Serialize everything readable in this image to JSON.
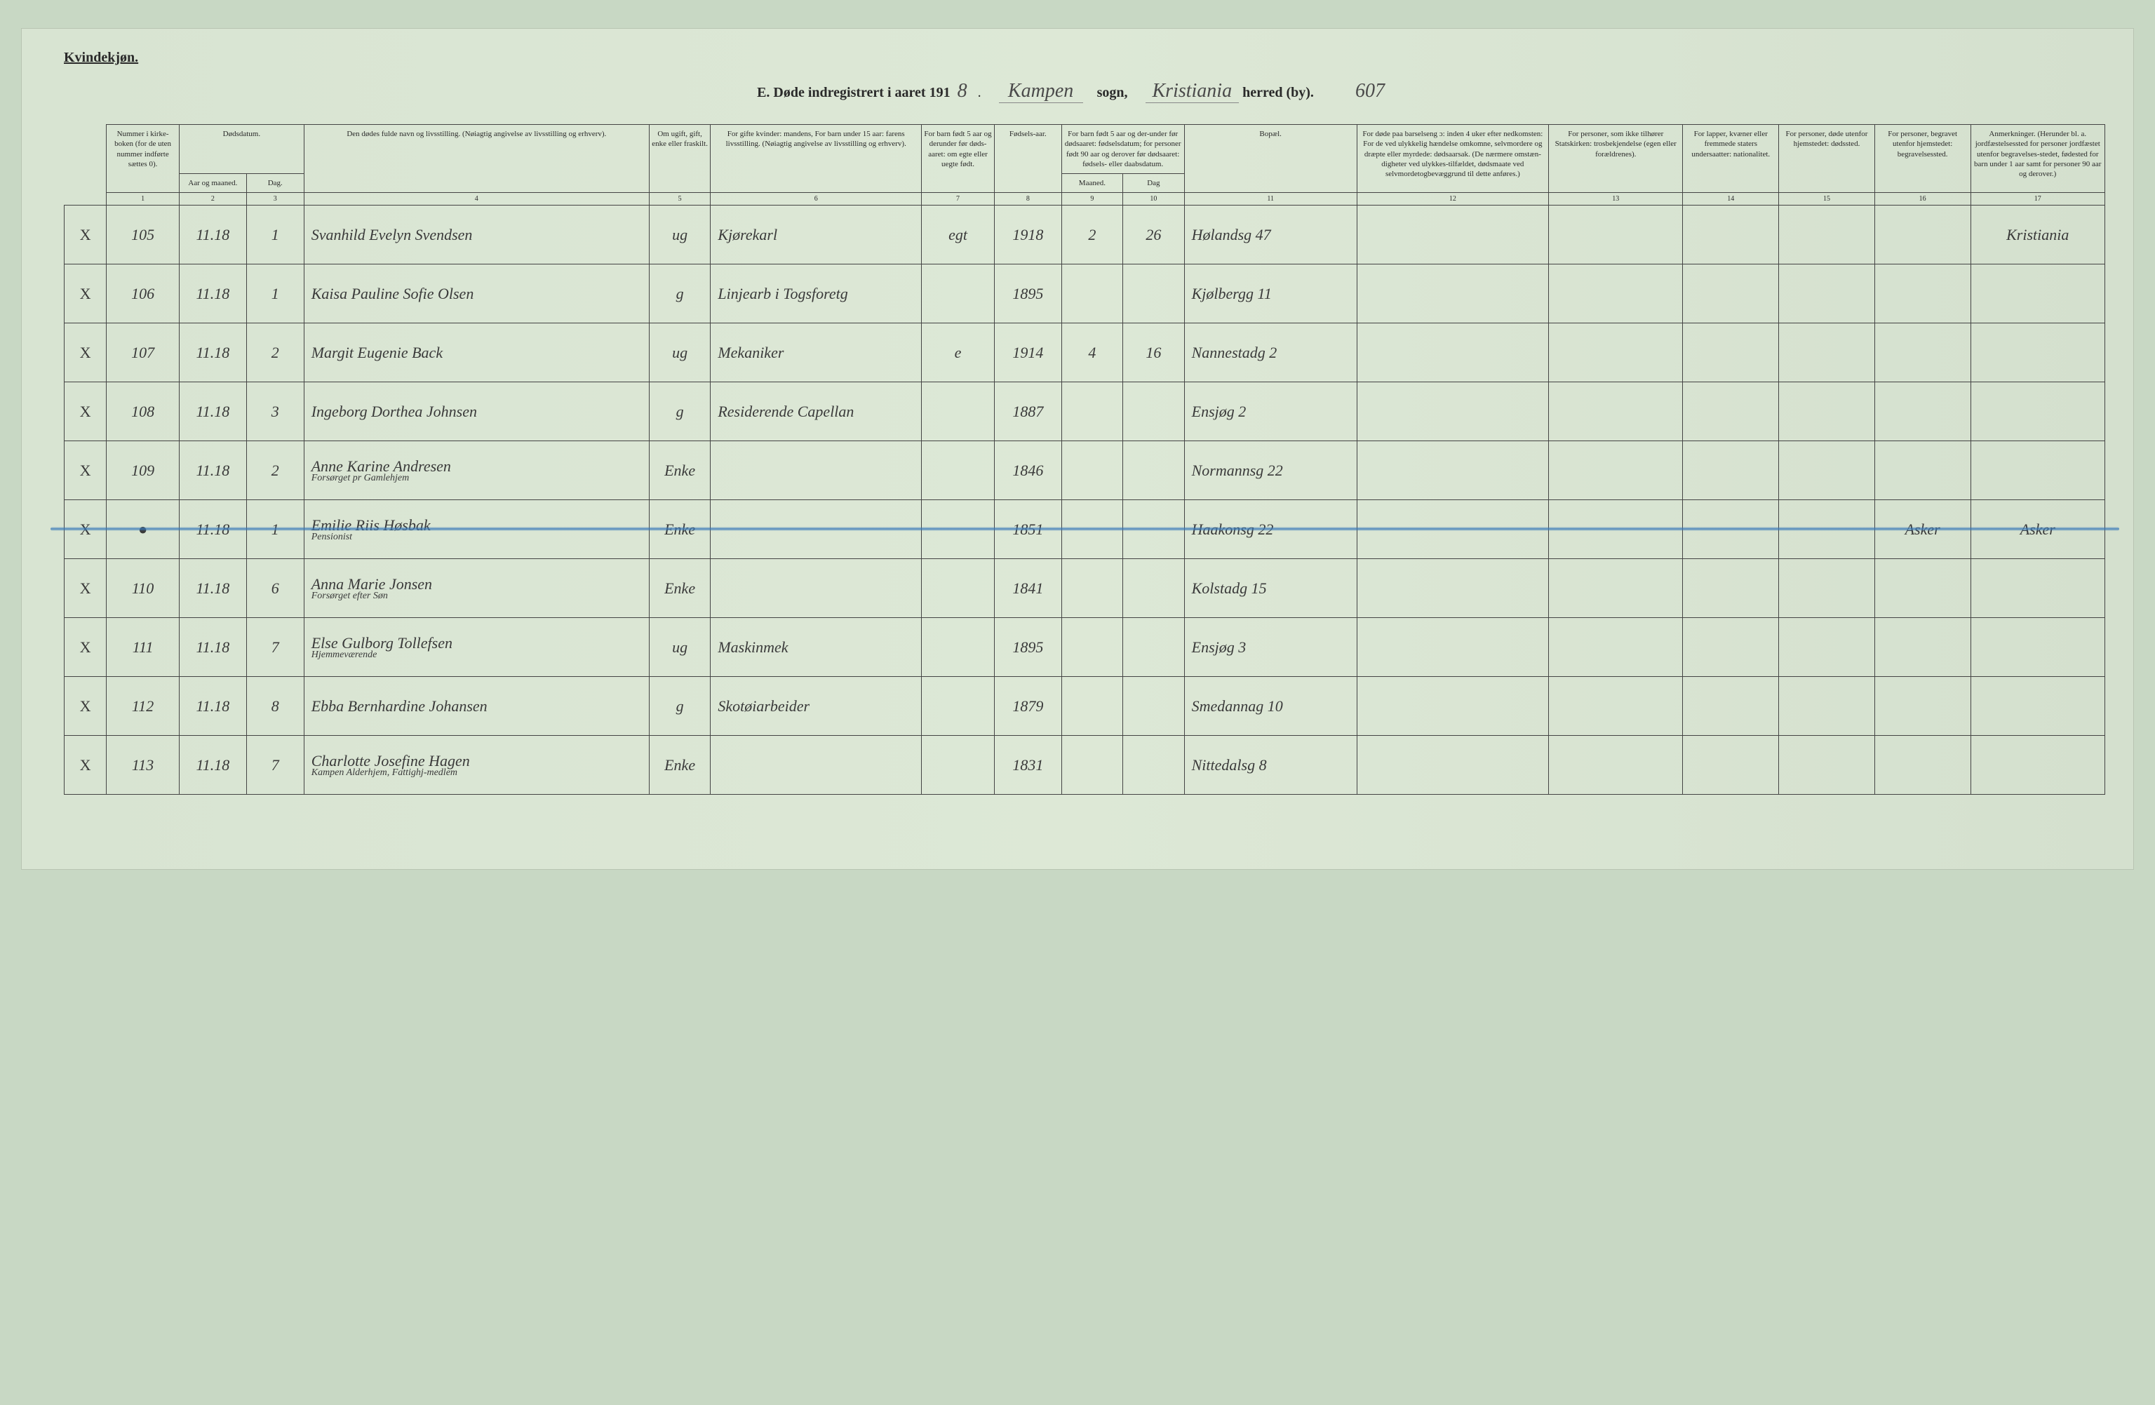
{
  "page": {
    "gender_label": "Kvindekjøn.",
    "title_prefix": "E.  Døde indregistrert i aaret 191",
    "year_suffix": "8",
    "sogn_value": "Kampen",
    "sogn_label": "sogn,",
    "herred_value": "Kristiania",
    "herred_label": "herred (by).",
    "page_num": "607"
  },
  "headers": {
    "c1": "Nummer i kirke-boken (for de uten nummer indførte sættes 0).",
    "c2a": "Dødsdatum.",
    "c2b": "Aar og maaned.",
    "c3": "Dag.",
    "c4": "Den dødes fulde navn og livsstilling.\n(Nøiagtig angivelse av livsstilling og erhverv).",
    "c5": "Om ugift, gift, enke eller fraskilt.",
    "c6": "For gifte kvinder:\nmandens,\nFor barn under 15 aar:\nfarens livsstilling.\n(Nøiagtig angivelse av livsstilling og erhverv).",
    "c7": "For barn født 5 aar og derunder før døds-aaret: om egte eller uegte født.",
    "c8": "Fødsels-aar.",
    "c9_10": "For barn født 5 aar og der-under før dødsaaret: fødselsdatum; for personer født 90 aar og derover før dødsaaret: fødsels- eller daabsdatum.",
    "c9": "Maaned.",
    "c10": "Dag",
    "c11": "Bopæl.",
    "c12": "For døde paa barselseng ɔ: inden 4 uker efter nedkomsten:\nFor de ved ulykkelig hændelse omkomne, selvmordere og dræpte eller myrdede: dødsaarsak.\n(De nærmere omstæn-digheter ved ulykkes-tilfældet, dødsmaate ved selvmordetogbevæggrund til dette anføres.)",
    "c13": "For personer, som ikke tilhører Statskirken:\ntrosbekjendelse (egen eller forældrenes).",
    "c14": "For lapper, kvæner eller fremmede staters undersaatter:\nnationalitet.",
    "c15": "For personer, døde utenfor hjemstedet:\ndødssted.",
    "c16": "For personer, begravet utenfor hjemstedet:\nbegravelsessted.",
    "c17": "Anmerkninger.\n(Herunder bl. a. jordfæstelsessted for personer jordfæstet utenfor begravelses-stedet, fødested for barn under 1 aar samt for personer 90 aar og derover.)"
  },
  "colnums": [
    "1",
    "2",
    "3",
    "4",
    "5",
    "6",
    "7",
    "8",
    "9",
    "10",
    "11",
    "12",
    "13",
    "14",
    "15",
    "16",
    "17"
  ],
  "rows": [
    {
      "mark": "X",
      "num": "105",
      "ym": "11.18",
      "d": "1",
      "name": "Svanhild Evelyn Svendsen",
      "stat": "ug",
      "occ": "Kjørekarl",
      "c7": "egt",
      "byear": "1918",
      "m": "2",
      "dag": "26",
      "addr": "Hølandsg 47",
      "c12": "",
      "c13": "",
      "c14": "",
      "c15": "",
      "c16": "",
      "c17": "Kristiania"
    },
    {
      "mark": "X",
      "num": "106",
      "ym": "11.18",
      "d": "1",
      "name": "Kaisa Pauline Sofie Olsen",
      "stat": "g",
      "occ": "Linjearb i Togsforetg",
      "c7": "",
      "byear": "1895",
      "m": "",
      "dag": "",
      "addr": "Kjølbergg 11",
      "c12": "",
      "c13": "",
      "c14": "",
      "c15": "",
      "c16": "",
      "c17": ""
    },
    {
      "mark": "X",
      "num": "107",
      "ym": "11.18",
      "d": "2",
      "name": "Margit Eugenie Back",
      "stat": "ug",
      "occ": "Mekaniker",
      "c7": "e",
      "byear": "1914",
      "m": "4",
      "dag": "16",
      "addr": "Nannestadg 2",
      "c12": "",
      "c13": "",
      "c14": "",
      "c15": "",
      "c16": "",
      "c17": ""
    },
    {
      "mark": "X",
      "num": "108",
      "ym": "11.18",
      "d": "3",
      "name": "Ingeborg Dorthea Johnsen",
      "stat": "g",
      "occ": "Residerende Capellan",
      "c7": "",
      "byear": "1887",
      "m": "",
      "dag": "",
      "addr": "Ensjøg 2",
      "c12": "",
      "c13": "",
      "c14": "",
      "c15": "",
      "c16": "",
      "c17": ""
    },
    {
      "mark": "X",
      "num": "109",
      "ym": "11.18",
      "d": "2",
      "name": "Anne Karine Andresen",
      "sub": "Forsørget pr Gamlehjem",
      "stat": "Enke",
      "occ": "",
      "c7": "",
      "byear": "1846",
      "m": "",
      "dag": "",
      "addr": "Normannsg 22",
      "c12": "",
      "c13": "",
      "c14": "",
      "c15": "",
      "c16": "",
      "c17": ""
    },
    {
      "mark": "X",
      "num": "●",
      "ym": "11.18",
      "d": "1",
      "name": "Emilie Riis Høsbak",
      "sub": "Pensionist",
      "stat": "Enke",
      "occ": "",
      "c7": "",
      "byear": "1851",
      "m": "",
      "dag": "",
      "addr": "Haakonsg 22",
      "c12": "",
      "c13": "",
      "c14": "",
      "c15": "",
      "c16": "Asker",
      "c17": "Asker",
      "strike": true
    },
    {
      "mark": "X",
      "num": "110",
      "ym": "11.18",
      "d": "6",
      "name": "Anna Marie Jonsen",
      "sub": "Forsørget efter Søn",
      "stat": "Enke",
      "occ": "",
      "c7": "",
      "byear": "1841",
      "m": "",
      "dag": "",
      "addr": "Kolstadg 15",
      "c12": "",
      "c13": "",
      "c14": "",
      "c15": "",
      "c16": "",
      "c17": ""
    },
    {
      "mark": "X",
      "num": "111",
      "ym": "11.18",
      "d": "7",
      "name": "Else Gulborg Tollefsen",
      "sub": "Hjemmeværende",
      "stat": "ug",
      "occ": "Maskinmek",
      "c7": "",
      "byear": "1895",
      "m": "",
      "dag": "",
      "addr": "Ensjøg 3",
      "c12": "",
      "c13": "",
      "c14": "",
      "c15": "",
      "c16": "",
      "c17": ""
    },
    {
      "mark": "X",
      "num": "112",
      "ym": "11.18",
      "d": "8",
      "name": "Ebba Bernhardine Johansen",
      "stat": "g",
      "occ": "Skotøiarbeider",
      "c7": "",
      "byear": "1879",
      "m": "",
      "dag": "",
      "addr": "Smedannag 10",
      "c12": "",
      "c13": "",
      "c14": "",
      "c15": "",
      "c16": "",
      "c17": ""
    },
    {
      "mark": "X",
      "num": "113",
      "ym": "11.18",
      "d": "7",
      "name": "Charlotte Josefine Hagen",
      "sub": "Kampen Alderhjem, Fattighj-medlem",
      "stat": "Enke",
      "occ": "",
      "c7": "",
      "byear": "1831",
      "m": "",
      "dag": "",
      "addr": "Nittedalsg 8",
      "c12": "",
      "c13": "",
      "c14": "",
      "c15": "",
      "c16": "",
      "c17": ""
    }
  ],
  "style": {
    "bg": "#c8d8c4",
    "paper": "#dde8d6",
    "ink": "#2a2a2a",
    "blue": "#3878b8"
  }
}
